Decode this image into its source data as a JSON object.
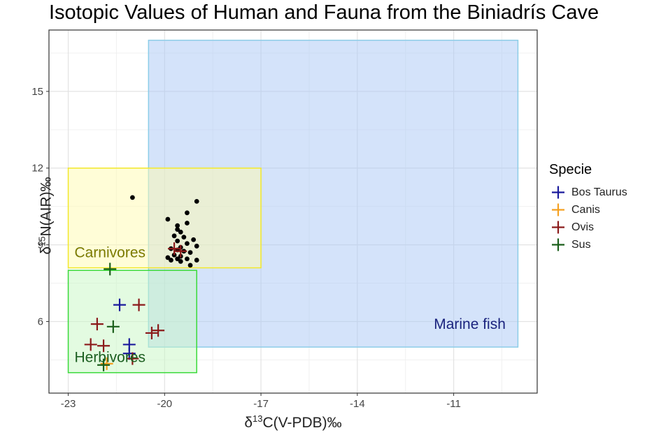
{
  "chart_data": {
    "type": "scatter",
    "title": "Isotopic Values of Human and Fauna from the Biniadrís Cave",
    "xlabel": "δ13C(V-PDB)‰",
    "ylabel": "δ15N(AIR)‰",
    "xlim": [
      -23.6,
      -8.4
    ],
    "ylim": [
      3.2,
      17.4
    ],
    "x_ticks": [
      -23,
      -20,
      -17,
      -14,
      -11
    ],
    "y_ticks": [
      6,
      9,
      12,
      15
    ],
    "x_tick_labels": [
      "-23",
      "-20",
      "-17",
      "-14",
      "-11"
    ],
    "y_tick_labels": [
      "6",
      "9",
      "12",
      "15"
    ],
    "grid": true,
    "legend_position": "right",
    "legend_title": "Specie",
    "regions": [
      {
        "label": "Marine fish",
        "x": [
          -20.5,
          -9
        ],
        "y": [
          5,
          17
        ],
        "fill": "#a9c8f5",
        "stroke": "#8ccde8",
        "text_color": "#1a237e",
        "label_x": -10.5,
        "label_y": 5.9
      },
      {
        "label": "Carnivores",
        "x": [
          -23,
          -17
        ],
        "y": [
          8.1,
          12
        ],
        "fill": "#fffbb0",
        "stroke": "#f2e82a",
        "text_color": "#7a7a00",
        "label_x": -21.7,
        "label_y": 8.7
      },
      {
        "label": "Herbivores",
        "x": [
          -23,
          -19
        ],
        "y": [
          4,
          8
        ],
        "fill": "#c7f7c3",
        "stroke": "#3ada3a",
        "text_color": "#1b5e20",
        "label_x": -21.7,
        "label_y": 4.6
      }
    ],
    "humans": {
      "color": "#000000",
      "points": [
        [
          -21.0,
          10.85
        ],
        [
          -19.0,
          10.7
        ],
        [
          -19.3,
          10.25
        ],
        [
          -19.9,
          10.0
        ],
        [
          -19.3,
          9.85
        ],
        [
          -19.6,
          9.75
        ],
        [
          -19.6,
          9.6
        ],
        [
          -19.5,
          9.5
        ],
        [
          -19.7,
          9.35
        ],
        [
          -19.4,
          9.3
        ],
        [
          -19.1,
          9.2
        ],
        [
          -19.6,
          9.15
        ],
        [
          -19.3,
          9.05
        ],
        [
          -19.0,
          8.95
        ],
        [
          -19.5,
          8.9
        ],
        [
          -19.8,
          8.85
        ],
        [
          -19.6,
          8.8
        ],
        [
          -19.4,
          8.75
        ],
        [
          -19.2,
          8.7
        ],
        [
          -19.7,
          8.6
        ],
        [
          -19.5,
          8.55
        ],
        [
          -19.9,
          8.5
        ],
        [
          -19.6,
          8.45
        ],
        [
          -19.3,
          8.45
        ],
        [
          -19.0,
          8.4
        ],
        [
          -19.8,
          8.4
        ],
        [
          -19.5,
          8.35
        ],
        [
          -19.2,
          8.2
        ]
      ]
    },
    "series": [
      {
        "name": "Bos Taurus",
        "color": "#1a1a9c",
        "points": [
          [
            -21.4,
            6.65
          ],
          [
            -21.1,
            5.1
          ],
          [
            -21.1,
            4.75
          ]
        ]
      },
      {
        "name": "Canis",
        "color": "#f5a020",
        "points": [
          [
            -21.8,
            4.35
          ]
        ]
      },
      {
        "name": "Ovis",
        "color": "#8b1a1a",
        "points": [
          [
            -19.7,
            8.85
          ],
          [
            -19.5,
            8.75
          ],
          [
            -20.8,
            6.65
          ],
          [
            -22.1,
            5.9
          ],
          [
            -20.2,
            5.65
          ],
          [
            -20.4,
            5.55
          ],
          [
            -22.3,
            5.1
          ],
          [
            -21.9,
            5.05
          ],
          [
            -21.0,
            4.55
          ]
        ]
      },
      {
        "name": "Sus",
        "color": "#1a5e1a",
        "points": [
          [
            -21.7,
            8.05
          ],
          [
            -21.6,
            5.8
          ],
          [
            -21.9,
            4.3
          ]
        ]
      }
    ]
  }
}
